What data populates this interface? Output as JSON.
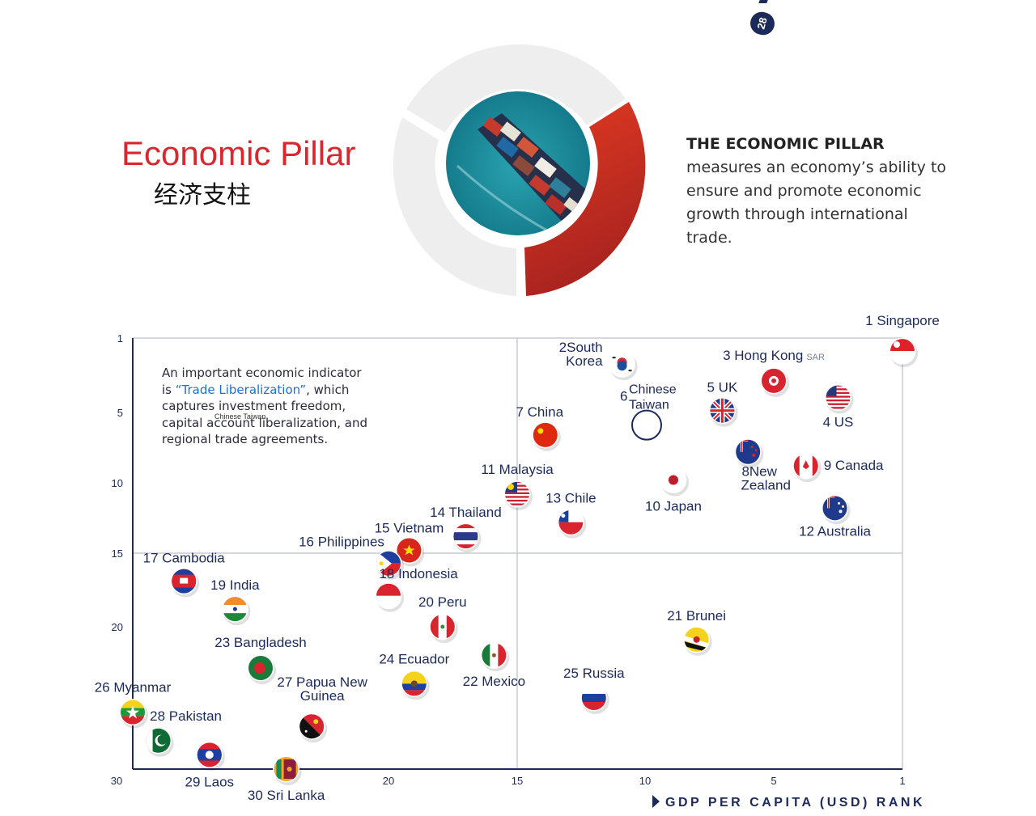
{
  "header": {
    "title_en": "Economic Pillar",
    "title_zh": "经济支柱",
    "page_number": "28",
    "description_bold": "THE ECONOMIC PILLAR",
    "description_rest": " measures an economy’s ability to ensure and promote economic growth through international trade.",
    "photo_icon": "container-ship-photo",
    "colors": {
      "accent_red": "#d7282f",
      "navy": "#1c2a5a",
      "ring_grey": "#eeeeee"
    }
  },
  "note": {
    "line_start": "An important economic indicator is ",
    "highlight": "“Trade Liberalization”",
    "line_end": ", which captures investment freedom, capital account liberalization, and regional trade agreements.",
    "stray_label": "Chinese Taiwan"
  },
  "chart_data": {
    "type": "scatter",
    "xlabel": "GDP PER CAPITA (USD) RANK",
    "ylabel": "",
    "x_ticks": [
      "30",
      "20",
      "15",
      "10",
      "5",
      "1"
    ],
    "y_ticks": [
      "1",
      "5",
      "10",
      "15",
      "20",
      "30"
    ],
    "xlim": [
      30,
      1
    ],
    "ylim": [
      30,
      1
    ],
    "axis_scale": "piecewise",
    "divider_lines": {
      "x": 15,
      "y": 15
    },
    "grid": false,
    "points": [
      {
        "rank": 1,
        "name": "Singapore",
        "label": "1 Singapore",
        "x": 1,
        "y": 1.7,
        "flag": "sg"
      },
      {
        "rank": 2,
        "name": "South Korea",
        "label": "2 South Korea",
        "x": 10.9,
        "y": 2.4,
        "flag": "kr"
      },
      {
        "rank": 3,
        "name": "Hong Kong SAR",
        "label": "3 Hong Kong",
        "suffix": "SAR",
        "x": 5,
        "y": 3.3,
        "flag": "hk"
      },
      {
        "rank": 4,
        "name": "US",
        "label": "4 US",
        "x": 3,
        "y": 4.2,
        "flag": "us"
      },
      {
        "rank": 5,
        "name": "UK",
        "label": "5 UK",
        "x": 7,
        "y": 4.9,
        "flag": "uk"
      },
      {
        "rank": 6,
        "name": "Chinese Taiwan",
        "label": "6",
        "label2": "Chinese Taiwan",
        "x": 10,
        "y": 5.9,
        "flag": "none"
      },
      {
        "rank": 7,
        "name": "China",
        "label": "7 China",
        "x": 13.9,
        "y": 6.6,
        "flag": "cn"
      },
      {
        "rank": 8,
        "name": "New Zealand",
        "label": "8 New Zealand",
        "x": 6,
        "y": 7.8,
        "flag": "nz"
      },
      {
        "rank": 9,
        "name": "Canada",
        "label": "9 Canada",
        "x": 4,
        "y": 8.8,
        "flag": "ca"
      },
      {
        "rank": 10,
        "name": "Japan",
        "label": "10 Japan",
        "x": 8.9,
        "y": 9.8,
        "flag": "jp"
      },
      {
        "rank": 11,
        "name": "Malaysia",
        "label": "11 Malaysia",
        "x": 15,
        "y": 10.8,
        "flag": "my"
      },
      {
        "rank": 12,
        "name": "Australia",
        "label": "12 Australia",
        "x": 3.1,
        "y": 11.8,
        "flag": "au"
      },
      {
        "rank": 13,
        "name": "Chile",
        "label": "13 Chile",
        "x": 12.9,
        "y": 12.8,
        "flag": "cl"
      },
      {
        "rank": 14,
        "name": "Thailand",
        "label": "14 Thailand",
        "x": 17,
        "y": 13.8,
        "flag": "th"
      },
      {
        "rank": 15,
        "name": "Vietnam",
        "label": "15 Vietnam",
        "x": 19.2,
        "y": 14.8,
        "flag": "vn"
      },
      {
        "rank": 16,
        "name": "Philippines",
        "label": "16 Philippines",
        "x": 20,
        "y": 15.7,
        "flag": "ph"
      },
      {
        "rank": 17,
        "name": "Cambodia",
        "label": "17 Cambodia",
        "x": 28,
        "y": 16.9,
        "flag": "kh"
      },
      {
        "rank": 18,
        "name": "Indonesia",
        "label": "18 Indonesia",
        "x": 20,
        "y": 17.9,
        "flag": "id"
      },
      {
        "rank": 19,
        "name": "India",
        "label": "19 India",
        "x": 26,
        "y": 18.8,
        "flag": "in"
      },
      {
        "rank": 20,
        "name": "Peru",
        "label": "20 Peru",
        "x": 17.9,
        "y": 20,
        "flag": "pe"
      },
      {
        "rank": 21,
        "name": "Brunei",
        "label": "21 Brunei",
        "x": 8,
        "y": 20.9,
        "flag": "bn"
      },
      {
        "rank": 22,
        "name": "Mexico",
        "label": "22 Mexico",
        "x": 15.9,
        "y": 22,
        "flag": "mx"
      },
      {
        "rank": 23,
        "name": "Bangladesh",
        "label": "23 Bangladesh",
        "x": 25,
        "y": 22.9,
        "flag": "bd"
      },
      {
        "rank": 24,
        "name": "Ecuador",
        "label": "24 Ecuador",
        "x": 19,
        "y": 24,
        "flag": "ec"
      },
      {
        "rank": 25,
        "name": "Russia",
        "label": "25 Russia",
        "x": 12,
        "y": 25,
        "flag": "ru"
      },
      {
        "rank": 26,
        "name": "Myanmar",
        "label": "26 Myanmar",
        "x": 30,
        "y": 26,
        "flag": "mm"
      },
      {
        "rank": 27,
        "name": "Papua New Guinea",
        "label": "27 Papua New Guinea",
        "x": 23,
        "y": 27,
        "flag": "pg"
      },
      {
        "rank": 28,
        "name": "Pakistan",
        "label": "28 Pakistan",
        "x": 29,
        "y": 28,
        "flag": "pk"
      },
      {
        "rank": 29,
        "name": "Laos",
        "label": "29 Laos",
        "x": 27,
        "y": 29,
        "flag": "la"
      },
      {
        "rank": 30,
        "name": "Sri Lanka",
        "label": "30 Sri Lanka",
        "x": 24,
        "y": 30,
        "flag": "lk"
      }
    ]
  }
}
